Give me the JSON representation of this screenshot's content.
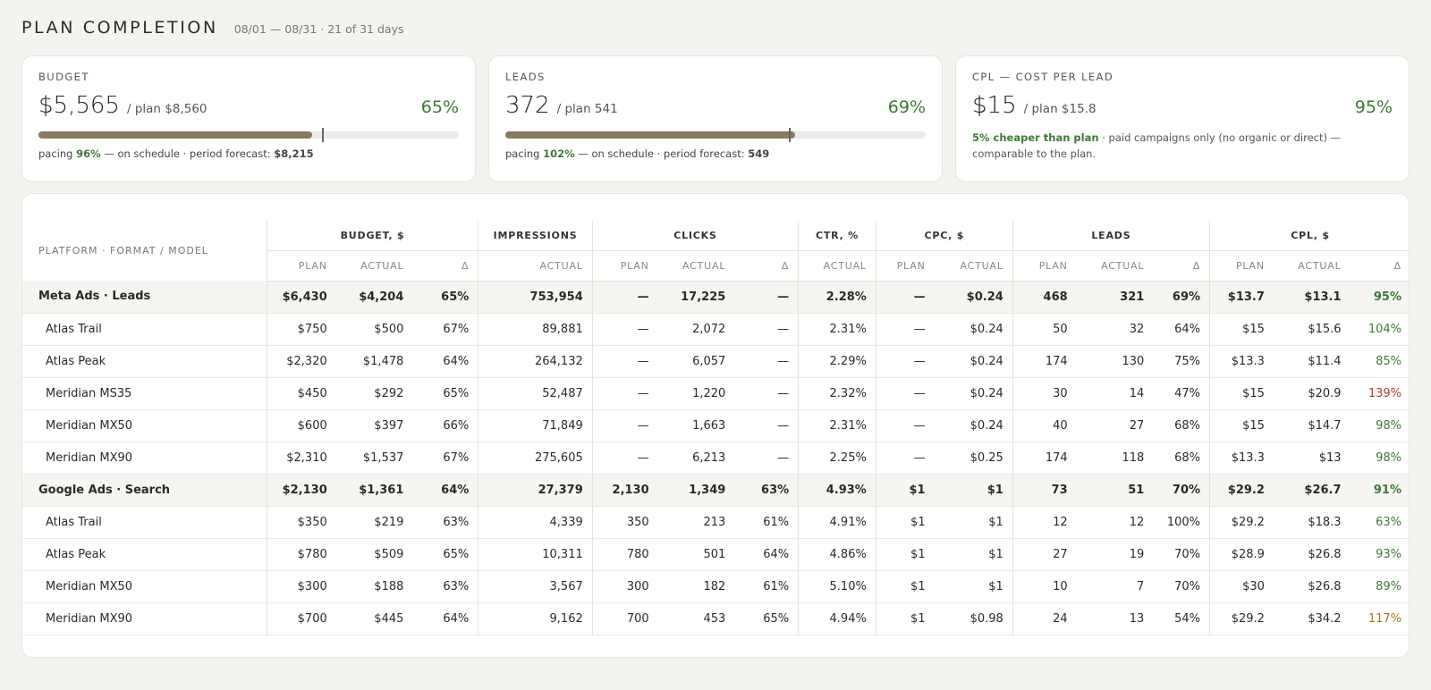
{
  "header": {
    "title": "PLAN COMPLETION",
    "subtitle": "08/01 — 08/31 · 21 of 31 days"
  },
  "cards": {
    "budget": {
      "label": "BUDGET",
      "value": "$5,565",
      "plan": "/ plan $8,560",
      "pct": "65%",
      "progress_fraction": 0.65,
      "marker_fraction": 0.677,
      "pacing_prefix": "pacing",
      "pacing_value": "96%",
      "pacing_suffix": "— on schedule · period forecast:",
      "forecast": "$8,215"
    },
    "leads": {
      "label": "LEADS",
      "value": "372",
      "plan": "/ plan 541",
      "pct": "69%",
      "progress_fraction": 0.69,
      "marker_fraction": 0.677,
      "pacing_prefix": "pacing",
      "pacing_value": "102%",
      "pacing_suffix": "— on schedule · period forecast:",
      "forecast": "549"
    },
    "cpl": {
      "label": "CPL — COST PER LEAD",
      "value": "$15",
      "plan": "/ plan $15.8",
      "pct": "95%",
      "note_highlight": "5% cheaper than plan",
      "note_rest": "· paid campaigns only (no organic or direct) — comparable to the plan."
    }
  },
  "table": {
    "row_label_header": "PLATFORM · FORMAT / MODEL",
    "groups": [
      "BUDGET, $",
      "IMPRESSIONS",
      "CLICKS",
      "CTR, %",
      "CPC, $",
      "LEADS",
      "CPL, $"
    ],
    "subheaders": [
      "PLAN",
      "ACTUAL",
      "Δ",
      "ACTUAL",
      "PLAN",
      "ACTUAL",
      "Δ",
      "ACTUAL",
      "PLAN",
      "ACTUAL",
      "PLAN",
      "ACTUAL",
      "Δ",
      "PLAN",
      "ACTUAL",
      "Δ"
    ],
    "rows": [
      {
        "type": "group",
        "name": "Meta Ads · Leads",
        "cells": [
          "$6,430",
          "$4,204",
          "65%",
          "753,954",
          "—",
          "17,225",
          "—",
          "2.28%",
          "—",
          "$0.24",
          "468",
          "321",
          "69%",
          "$13.7",
          "$13.1",
          "95%"
        ],
        "cpl_status": "good"
      },
      {
        "type": "item",
        "name": "Atlas Trail",
        "cells": [
          "$750",
          "$500",
          "67%",
          "89,881",
          "—",
          "2,072",
          "—",
          "2.31%",
          "—",
          "$0.24",
          "50",
          "32",
          "64%",
          "$15",
          "$15.6",
          "104%"
        ],
        "cpl_status": "good"
      },
      {
        "type": "item",
        "name": "Atlas Peak",
        "cells": [
          "$2,320",
          "$1,478",
          "64%",
          "264,132",
          "—",
          "6,057",
          "—",
          "2.29%",
          "—",
          "$0.24",
          "174",
          "130",
          "75%",
          "$13.3",
          "$11.4",
          "85%"
        ],
        "cpl_status": "good"
      },
      {
        "type": "item",
        "name": "Meridian MS35",
        "cells": [
          "$450",
          "$292",
          "65%",
          "52,487",
          "—",
          "1,220",
          "—",
          "2.32%",
          "—",
          "$0.24",
          "30",
          "14",
          "47%",
          "$15",
          "$20.9",
          "139%"
        ],
        "cpl_status": "bad"
      },
      {
        "type": "item",
        "name": "Meridian MX50",
        "cells": [
          "$600",
          "$397",
          "66%",
          "71,849",
          "—",
          "1,663",
          "—",
          "2.31%",
          "—",
          "$0.24",
          "40",
          "27",
          "68%",
          "$15",
          "$14.7",
          "98%"
        ],
        "cpl_status": "good"
      },
      {
        "type": "item",
        "name": "Meridian MX90",
        "cells": [
          "$2,310",
          "$1,537",
          "67%",
          "275,605",
          "—",
          "6,213",
          "—",
          "2.25%",
          "—",
          "$0.25",
          "174",
          "118",
          "68%",
          "$13.3",
          "$13",
          "98%"
        ],
        "cpl_status": "good"
      },
      {
        "type": "group",
        "name": "Google Ads · Search",
        "cells": [
          "$2,130",
          "$1,361",
          "64%",
          "27,379",
          "2,130",
          "1,349",
          "63%",
          "4.93%",
          "$1",
          "$1",
          "73",
          "51",
          "70%",
          "$29.2",
          "$26.7",
          "91%"
        ],
        "cpl_status": "good"
      },
      {
        "type": "item",
        "name": "Atlas Trail",
        "cells": [
          "$350",
          "$219",
          "63%",
          "4,339",
          "350",
          "213",
          "61%",
          "4.91%",
          "$1",
          "$1",
          "12",
          "12",
          "100%",
          "$29.2",
          "$18.3",
          "63%"
        ],
        "cpl_status": "good"
      },
      {
        "type": "item",
        "name": "Atlas Peak",
        "cells": [
          "$780",
          "$509",
          "65%",
          "10,311",
          "780",
          "501",
          "64%",
          "4.86%",
          "$1",
          "$1",
          "27",
          "19",
          "70%",
          "$28.9",
          "$26.8",
          "93%"
        ],
        "cpl_status": "good"
      },
      {
        "type": "item",
        "name": "Meridian MX50",
        "cells": [
          "$300",
          "$188",
          "63%",
          "3,567",
          "300",
          "182",
          "61%",
          "5.10%",
          "$1",
          "$1",
          "10",
          "7",
          "70%",
          "$30",
          "$26.8",
          "89%"
        ],
        "cpl_status": "good"
      },
      {
        "type": "item",
        "name": "Meridian MX90",
        "cells": [
          "$700",
          "$445",
          "64%",
          "9,162",
          "700",
          "453",
          "65%",
          "4.94%",
          "$1",
          "$0.98",
          "24",
          "13",
          "54%",
          "$29.2",
          "$34.2",
          "117%"
        ],
        "cpl_status": "warn"
      }
    ]
  },
  "colors": {
    "good": "#3e7a35",
    "bad": "#b03a2e",
    "warn": "#a07a16",
    "progress": "#8a7a5c"
  }
}
